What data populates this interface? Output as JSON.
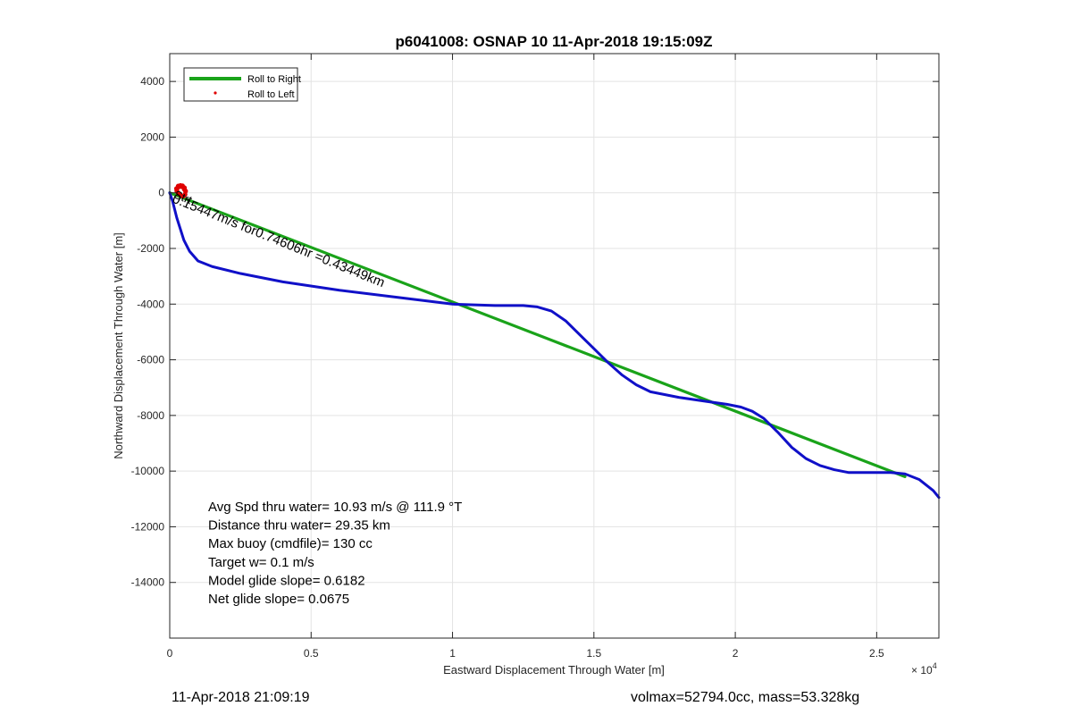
{
  "chart_data": {
    "type": "line",
    "title": "p6041008: OSNAP 10 11-Apr-2018 19:15:09Z",
    "xlabel": "Eastward Displacement Through Water [m]",
    "ylabel": "Northward Displacement Through Water [m]",
    "x_exponent_label": "× 10",
    "x_exponent_power": "4",
    "xlim": [
      0,
      27200
    ],
    "ylim": [
      -16000,
      5000
    ],
    "x_ticks": [
      0,
      5000,
      10000,
      15000,
      20000,
      25000
    ],
    "x_tick_labels": [
      "0",
      "0.5",
      "1",
      "1.5",
      "2",
      "2.5"
    ],
    "y_ticks": [
      4000,
      2000,
      0,
      -2000,
      -4000,
      -6000,
      -8000,
      -10000,
      -12000,
      -14000
    ],
    "y_tick_labels": [
      "4000",
      "2000",
      "0",
      "-2000",
      "-4000",
      "-6000",
      "-8000",
      "-10000",
      "-12000",
      "-14000"
    ],
    "grid": true,
    "legend_position": "top-left",
    "series": [
      {
        "name": "Roll to Right",
        "color": "#1aa31a",
        "style": "line",
        "x": [
          0,
          26000
        ],
        "y": [
          0,
          -10200
        ]
      },
      {
        "name": "Roll to Left",
        "color": "#e00000",
        "style": "dots",
        "x": [
          250,
          300,
          380,
          450,
          520,
          560,
          540,
          480,
          400,
          320,
          260,
          240,
          300,
          420,
          520
        ],
        "y": [
          80,
          200,
          260,
          250,
          180,
          60,
          -60,
          -120,
          -110,
          -40,
          40,
          150,
          240,
          220,
          120
        ]
      },
      {
        "name": "",
        "color": "#1010c8",
        "style": "line",
        "x": [
          0,
          100,
          250,
          500,
          700,
          1000,
          1500,
          2500,
          4000,
          6000,
          8000,
          10000,
          11500,
          12500,
          13000,
          13500,
          14000,
          14500,
          15000,
          15500,
          16000,
          16500,
          17000,
          18000,
          19000,
          19700,
          20200,
          20600,
          21000,
          21500,
          22000,
          22500,
          23000,
          23500,
          24000,
          24500,
          25000,
          25500,
          26000,
          26500,
          27000,
          27200
        ],
        "y": [
          0,
          -300,
          -900,
          -1700,
          -2100,
          -2450,
          -2650,
          -2900,
          -3200,
          -3500,
          -3750,
          -4000,
          -4050,
          -4050,
          -4100,
          -4250,
          -4600,
          -5100,
          -5600,
          -6100,
          -6550,
          -6900,
          -7150,
          -7350,
          -7500,
          -7600,
          -7700,
          -7850,
          -8100,
          -8600,
          -9150,
          -9550,
          -9800,
          -9950,
          -10050,
          -10050,
          -10050,
          -10050,
          -10100,
          -10300,
          -10700,
          -10950
        ]
      }
    ],
    "annotations": {
      "rotated_label": "0.15447m/s for0.74606hr =0.43449km",
      "overlap_label": "Strt",
      "stats": [
        "Avg Spd thru water= 10.93 m/s @ 111.9 °T",
        "Distance thru water= 29.35 km",
        "Max buoy (cmdfile)= 130 cc",
        "Target w= 0.1 m/s",
        "Model glide slope= 0.6182",
        "Net glide slope= 0.0675"
      ]
    }
  },
  "footer": {
    "timestamp": "11-Apr-2018 21:09:19",
    "vol_mass": "volmax=52794.0cc, mass=53.328kg"
  }
}
